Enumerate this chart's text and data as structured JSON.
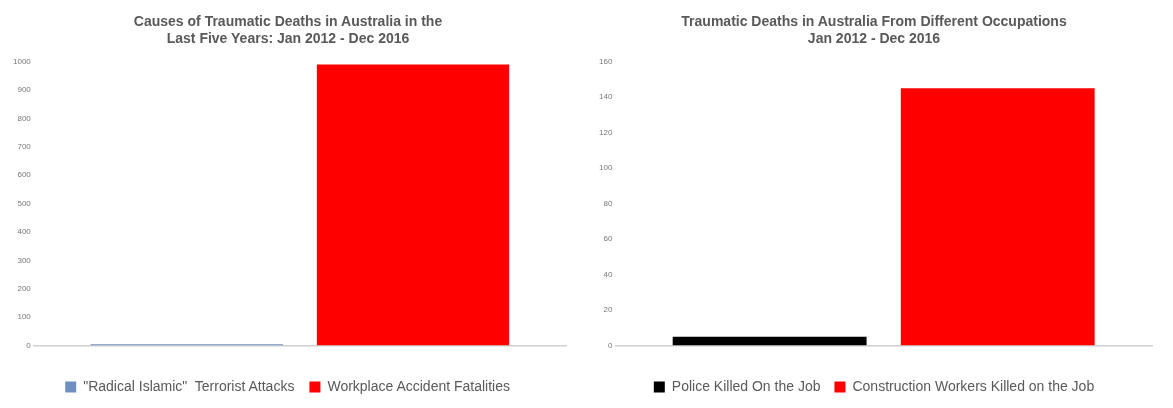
{
  "chart_data": [
    {
      "type": "bar",
      "title": "Causes of Traumatic Deaths in Australia in the\nLast Five Years: Jan 2012 - Dec 2016",
      "categories": [
        null
      ],
      "series": [
        {
          "name": "\"Radical Islamic\"  Terrorist Attacks",
          "color": "#6f8fc0",
          "values": [
            5
          ]
        },
        {
          "name": "Workplace Accident Fatalities",
          "color": "#ff0000",
          "values": [
            990
          ]
        }
      ],
      "ylim": [
        0,
        1000
      ],
      "yticks": [
        0,
        100,
        200,
        300,
        400,
        500,
        600,
        700,
        800,
        900,
        1000
      ],
      "grid": false,
      "legend": "bottom"
    },
    {
      "type": "bar",
      "title": "Traumatic Deaths in Australia From Different Occupations\nJan 2012 - Dec 2016",
      "categories": [
        null
      ],
      "series": [
        {
          "name": "Police Killed On the Job",
          "color": "#000000",
          "values": [
            5
          ]
        },
        {
          "name": "Construction Workers Killed on the Job",
          "color": "#ff0000",
          "values": [
            145
          ]
        }
      ],
      "ylim": [
        0,
        160
      ],
      "yticks": [
        0,
        20,
        40,
        60,
        80,
        100,
        120,
        140,
        160
      ],
      "grid": false,
      "legend": "bottom"
    }
  ]
}
